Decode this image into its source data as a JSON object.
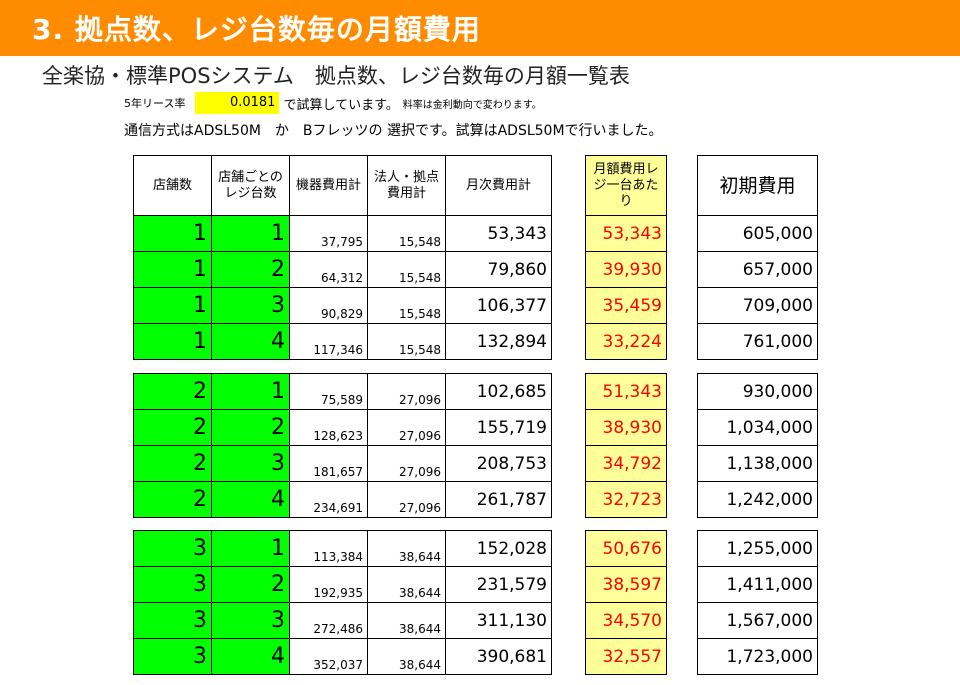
{
  "banner": {
    "title": "3. 拠点数、レジ台数毎の月額費用"
  },
  "heading": "全楽協・標準POSシステム　拠点数、レジ台数毎の月額一覧表",
  "lease": {
    "label": "5年リース率",
    "rate": "0.0181",
    "text": "で試算しています。",
    "note": "料率は金利動向で変わります。"
  },
  "comm_note": "通信方式はADSL50M　か　Bフレッツの 選択です。試算はADSL50Mで行いました。",
  "headers": {
    "stores": "店舗数",
    "registers": "店舗ごとのレジ台数",
    "equipment": "機器費用計",
    "corporate": "法人・拠点費用計",
    "monthly_total": "月次費用計",
    "per_register": "月額費用レジ一台あたり",
    "initial": "初期費用"
  },
  "groups": [
    {
      "rows": [
        {
          "stores": "1",
          "registers": "1",
          "equipment": "37,795",
          "corporate": "15,548",
          "monthly": "53,343",
          "per_register": "53,343",
          "initial": "605,000"
        },
        {
          "stores": "1",
          "registers": "2",
          "equipment": "64,312",
          "corporate": "15,548",
          "monthly": "79,860",
          "per_register": "39,930",
          "initial": "657,000"
        },
        {
          "stores": "1",
          "registers": "3",
          "equipment": "90,829",
          "corporate": "15,548",
          "monthly": "106,377",
          "per_register": "35,459",
          "initial": "709,000"
        },
        {
          "stores": "1",
          "registers": "4",
          "equipment": "117,346",
          "corporate": "15,548",
          "monthly": "132,894",
          "per_register": "33,224",
          "initial": "761,000"
        }
      ]
    },
    {
      "rows": [
        {
          "stores": "2",
          "registers": "1",
          "equipment": "75,589",
          "corporate": "27,096",
          "monthly": "102,685",
          "per_register": "51,343",
          "initial": "930,000"
        },
        {
          "stores": "2",
          "registers": "2",
          "equipment": "128,623",
          "corporate": "27,096",
          "monthly": "155,719",
          "per_register": "38,930",
          "initial": "1,034,000"
        },
        {
          "stores": "2",
          "registers": "3",
          "equipment": "181,657",
          "corporate": "27,096",
          "monthly": "208,753",
          "per_register": "34,792",
          "initial": "1,138,000"
        },
        {
          "stores": "2",
          "registers": "4",
          "equipment": "234,691",
          "corporate": "27,096",
          "monthly": "261,787",
          "per_register": "32,723",
          "initial": "1,242,000"
        }
      ]
    },
    {
      "rows": [
        {
          "stores": "3",
          "registers": "1",
          "equipment": "113,384",
          "corporate": "38,644",
          "monthly": "152,028",
          "per_register": "50,676",
          "initial": "1,255,000"
        },
        {
          "stores": "3",
          "registers": "2",
          "equipment": "192,935",
          "corporate": "38,644",
          "monthly": "231,579",
          "per_register": "38,597",
          "initial": "1,411,000"
        },
        {
          "stores": "3",
          "registers": "3",
          "equipment": "272,486",
          "corporate": "38,644",
          "monthly": "311,130",
          "per_register": "34,570",
          "initial": "1,567,000"
        },
        {
          "stores": "3",
          "registers": "4",
          "equipment": "352,037",
          "corporate": "38,644",
          "monthly": "390,681",
          "per_register": "32,557",
          "initial": "1,723,000"
        }
      ]
    }
  ]
}
